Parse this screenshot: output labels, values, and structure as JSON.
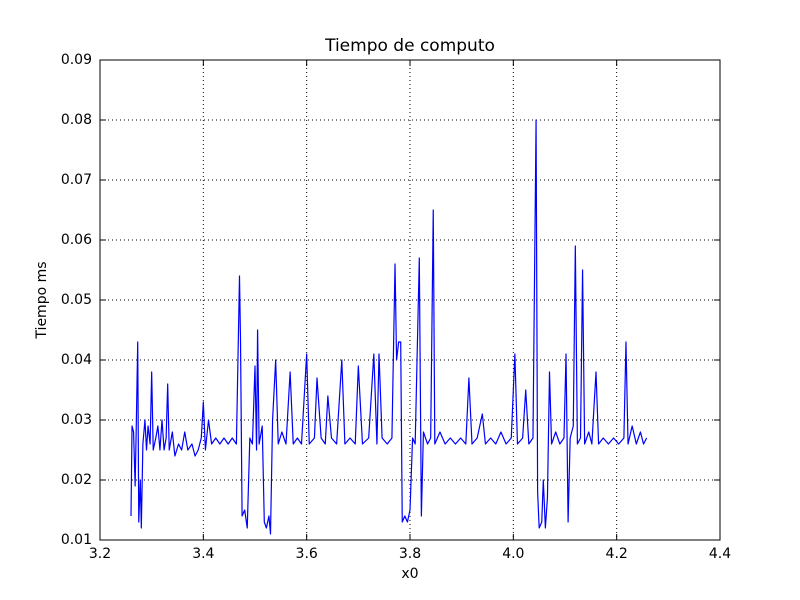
{
  "chart_data": {
    "type": "line",
    "title": "Tiempo de computo",
    "x_label": "x0",
    "y_label": "Tiempo ms",
    "color": "#0000ff",
    "grid": true,
    "xlim": [
      3.2,
      4.4
    ],
    "xticks": [
      3.2,
      3.4,
      3.6,
      3.8,
      {
        "value": 4.0,
        "label": "4.0"
      },
      4.2,
      4.4
    ],
    "ylim": [
      0.01,
      0.09
    ],
    "yticks": [
      0.01,
      0.02,
      0.03,
      0.04,
      0.05,
      0.06,
      0.07,
      0.08,
      0.09
    ],
    "x": [
      3.26,
      3.262,
      3.265,
      3.268,
      3.27,
      3.273,
      3.275,
      3.278,
      3.28,
      3.283,
      3.287,
      3.29,
      3.293,
      3.297,
      3.3,
      3.303,
      3.308,
      3.312,
      3.316,
      3.32,
      3.324,
      3.328,
      3.331,
      3.334,
      3.34,
      3.345,
      3.352,
      3.358,
      3.364,
      3.37,
      3.378,
      3.384,
      3.39,
      3.396,
      3.4,
      3.404,
      3.41,
      3.416,
      3.424,
      3.432,
      3.44,
      3.448,
      3.456,
      3.464,
      3.47,
      3.472,
      3.475,
      3.48,
      3.485,
      3.49,
      3.495,
      3.5,
      3.503,
      3.505,
      3.508,
      3.514,
      3.518,
      3.522,
      3.527,
      3.53,
      3.534,
      3.54,
      3.545,
      3.552,
      3.56,
      3.568,
      3.574,
      3.582,
      3.59,
      3.6,
      3.605,
      3.615,
      3.62,
      3.628,
      3.636,
      3.641,
      3.648,
      3.658,
      3.668,
      3.674,
      3.684,
      3.694,
      3.7,
      3.708,
      3.72,
      3.73,
      3.736,
      3.74,
      3.746,
      3.756,
      3.765,
      3.771,
      3.774,
      3.778,
      3.782,
      3.785,
      3.79,
      3.795,
      3.8,
      3.805,
      3.81,
      3.818,
      3.822,
      3.826,
      3.834,
      3.84,
      3.845,
      3.848,
      3.858,
      3.868,
      3.878,
      3.888,
      3.898,
      3.908,
      3.914,
      3.92,
      3.93,
      3.94,
      3.946,
      3.956,
      3.966,
      3.976,
      3.986,
      3.996,
      4.003,
      4.008,
      4.018,
      4.024,
      4.03,
      4.038,
      4.044,
      4.047,
      4.05,
      4.055,
      4.058,
      4.062,
      4.066,
      4.07,
      4.074,
      4.082,
      4.09,
      4.098,
      4.102,
      4.106,
      4.11,
      4.116,
      4.12,
      4.124,
      4.13,
      4.134,
      4.138,
      4.146,
      4.152,
      4.16,
      4.165,
      4.174,
      4.184,
      4.194,
      4.204,
      4.214,
      4.218,
      4.222,
      4.23,
      4.238,
      4.246,
      4.252,
      4.258
    ],
    "values": [
      0.014,
      0.029,
      0.028,
      0.019,
      0.028,
      0.043,
      0.013,
      0.02,
      0.012,
      0.026,
      0.03,
      0.025,
      0.029,
      0.026,
      0.038,
      0.025,
      0.027,
      0.029,
      0.025,
      0.03,
      0.025,
      0.027,
      0.036,
      0.025,
      0.028,
      0.024,
      0.026,
      0.025,
      0.028,
      0.025,
      0.026,
      0.024,
      0.025,
      0.027,
      0.033,
      0.025,
      0.03,
      0.026,
      0.027,
      0.026,
      0.027,
      0.026,
      0.027,
      0.026,
      0.054,
      0.043,
      0.014,
      0.015,
      0.012,
      0.027,
      0.026,
      0.039,
      0.025,
      0.045,
      0.026,
      0.029,
      0.013,
      0.012,
      0.014,
      0.011,
      0.03,
      0.04,
      0.026,
      0.028,
      0.026,
      0.038,
      0.026,
      0.027,
      0.026,
      0.041,
      0.026,
      0.027,
      0.037,
      0.027,
      0.026,
      0.034,
      0.027,
      0.026,
      0.04,
      0.026,
      0.027,
      0.026,
      0.039,
      0.026,
      0.027,
      0.041,
      0.026,
      0.041,
      0.027,
      0.026,
      0.027,
      0.056,
      0.04,
      0.043,
      0.043,
      0.013,
      0.014,
      0.013,
      0.015,
      0.027,
      0.026,
      0.057,
      0.014,
      0.028,
      0.026,
      0.027,
      0.065,
      0.026,
      0.028,
      0.026,
      0.027,
      0.026,
      0.027,
      0.026,
      0.037,
      0.026,
      0.027,
      0.031,
      0.026,
      0.027,
      0.026,
      0.028,
      0.026,
      0.027,
      0.041,
      0.026,
      0.027,
      0.035,
      0.026,
      0.027,
      0.08,
      0.018,
      0.012,
      0.013,
      0.02,
      0.012,
      0.017,
      0.038,
      0.026,
      0.028,
      0.026,
      0.027,
      0.041,
      0.013,
      0.027,
      0.029,
      0.059,
      0.026,
      0.027,
      0.055,
      0.026,
      0.028,
      0.026,
      0.038,
      0.026,
      0.027,
      0.026,
      0.027,
      0.026,
      0.027,
      0.043,
      0.026,
      0.029,
      0.026,
      0.028,
      0.026,
      0.027
    ]
  }
}
